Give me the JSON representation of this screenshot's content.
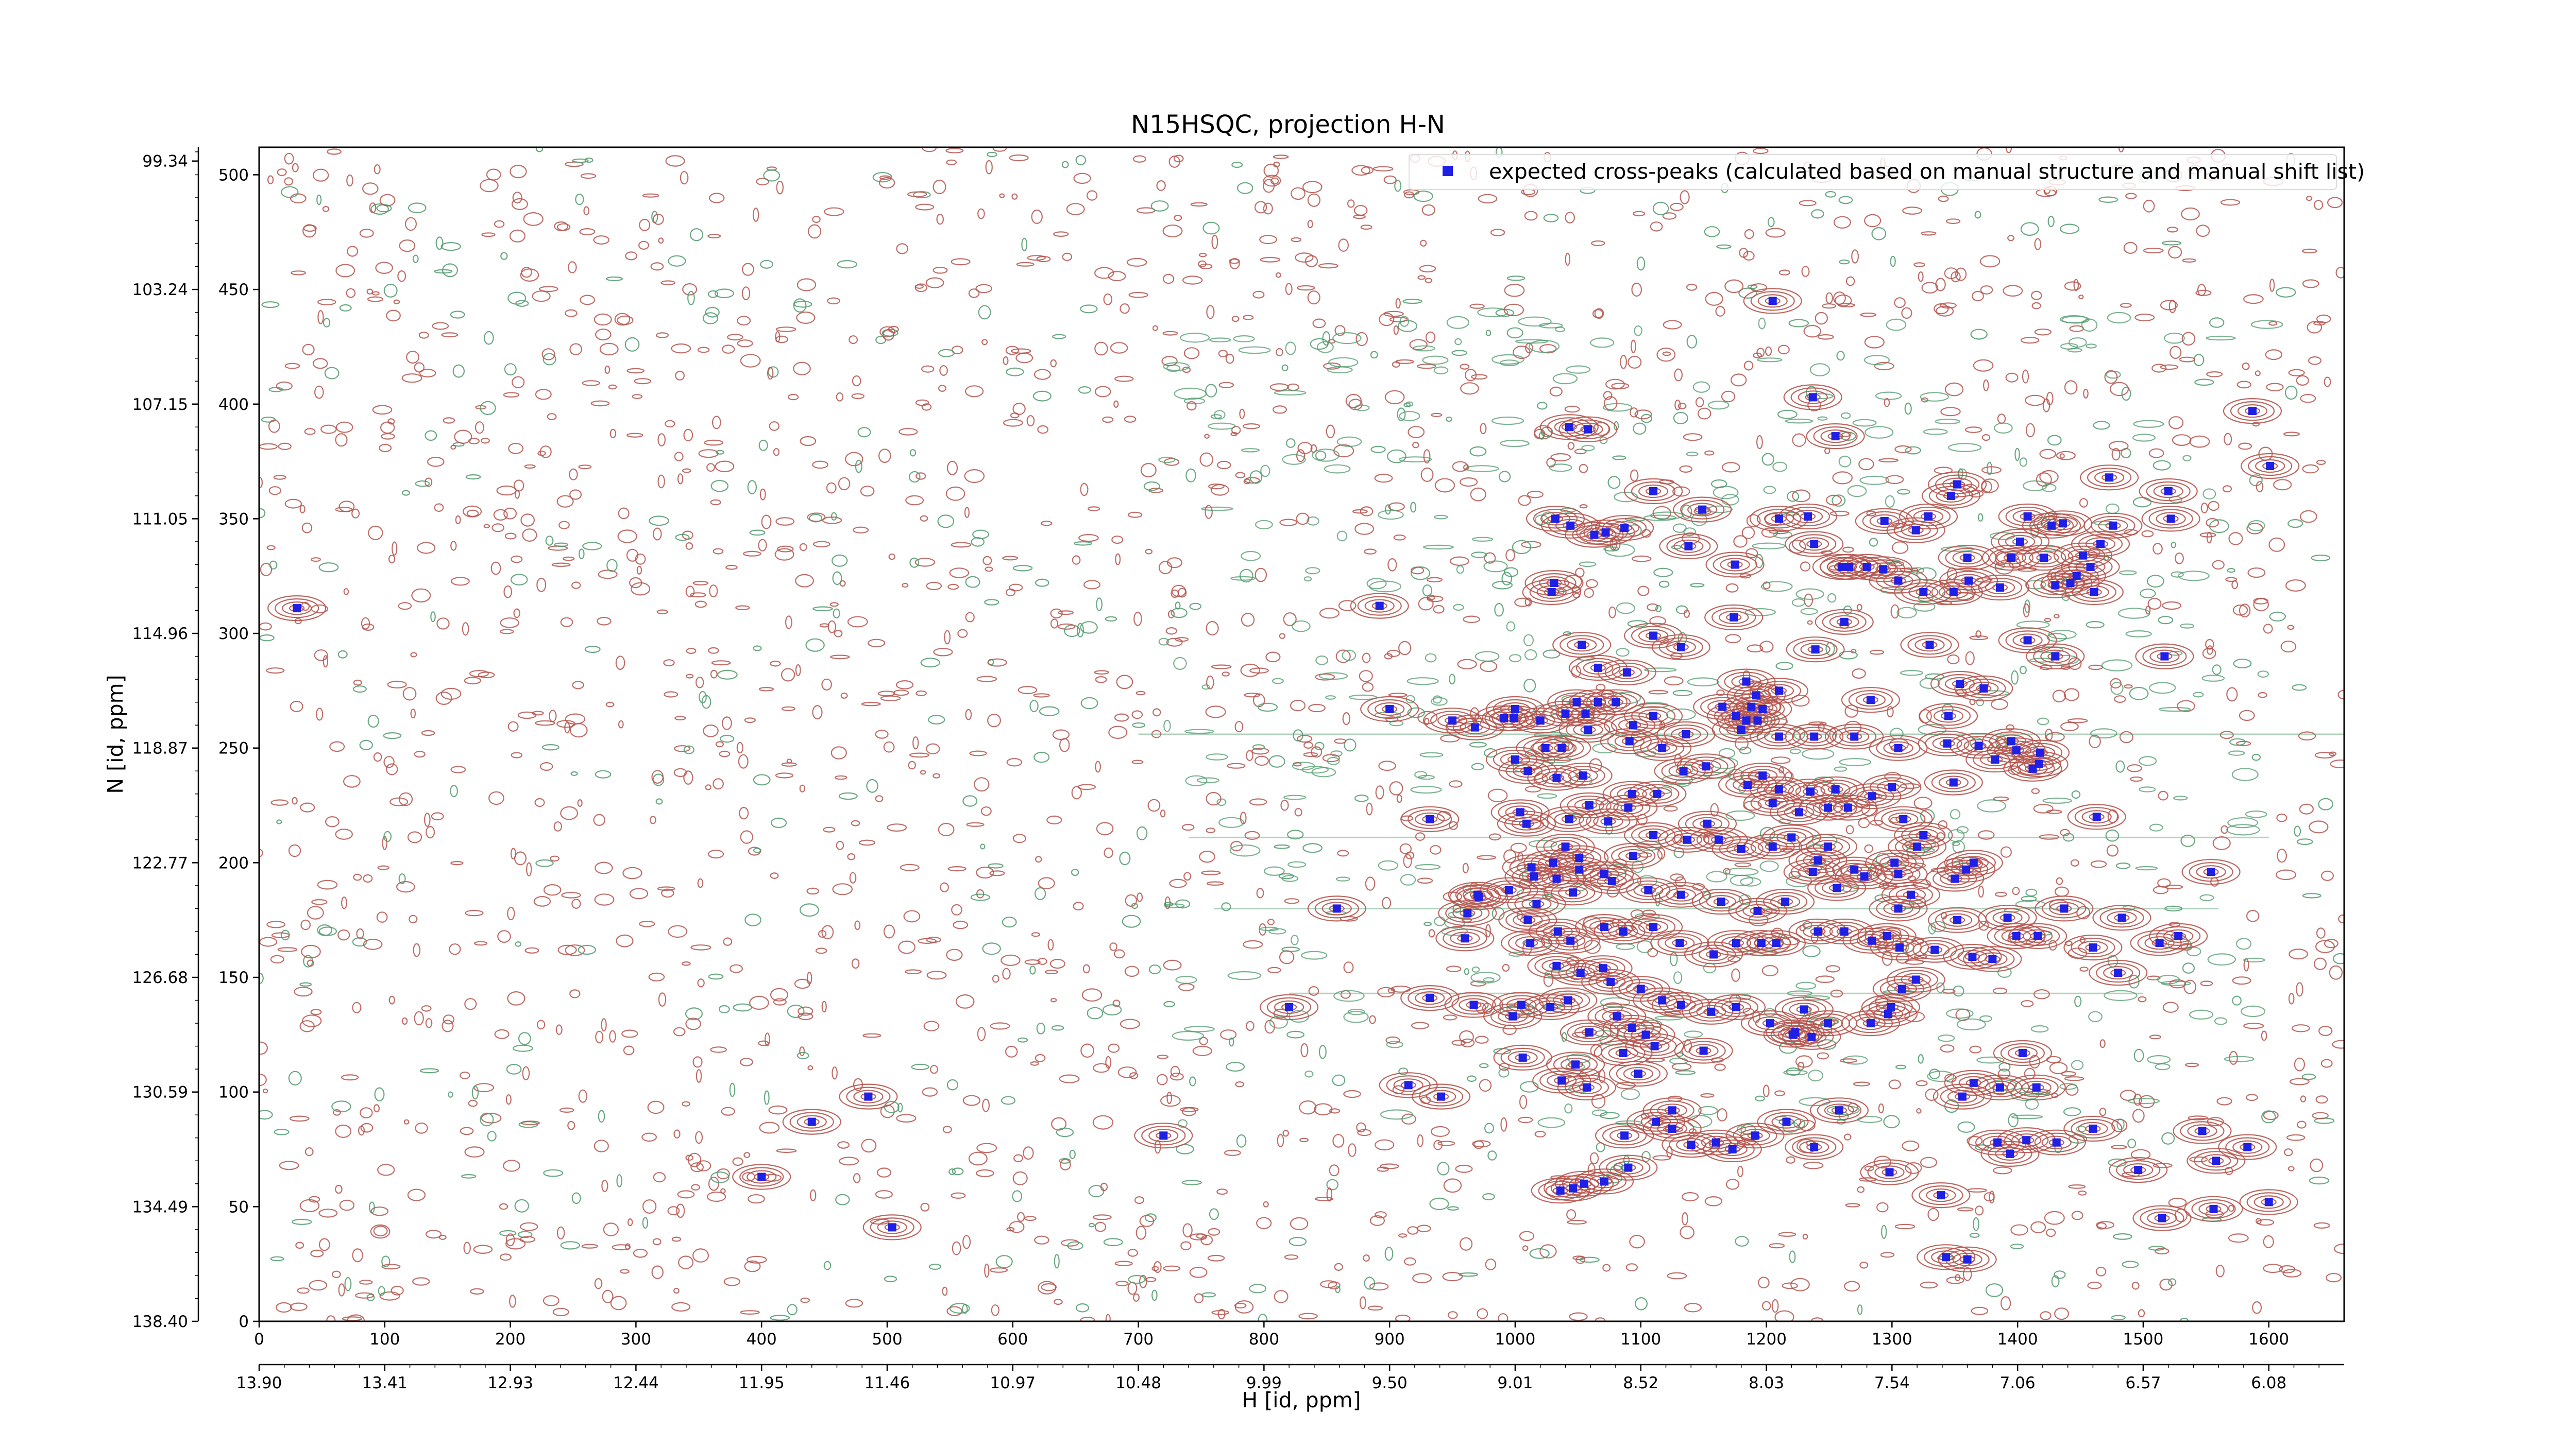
{
  "chart_data": {
    "type": "scatter",
    "title": "N15HSQC, projection H-N",
    "xlabel": "H [id, ppm]",
    "ylabel": "N [id, ppm]",
    "x_index_ticks": [
      "0",
      "100",
      "200",
      "300",
      "400",
      "500",
      "600",
      "700",
      "800",
      "900",
      "1000",
      "1100",
      "1200",
      "1300",
      "1400",
      "1500",
      "1600"
    ],
    "x_ppm_ticks": [
      "13.90",
      "13.41",
      "12.93",
      "12.44",
      "11.95",
      "11.46",
      "10.97",
      "10.48",
      "9.99",
      "9.50",
      "9.01",
      "8.52",
      "8.03",
      "7.54",
      "7.06",
      "6.57",
      "6.08"
    ],
    "y_index_ticks": [
      "0",
      "50",
      "100",
      "150",
      "200",
      "250",
      "300",
      "350",
      "400",
      "450",
      "500"
    ],
    "y_ppm_ticks": [
      "138.40",
      "134.49",
      "130.59",
      "126.68",
      "122.77",
      "118.87",
      "114.96",
      "111.05",
      "107.15",
      "103.24",
      "99.34"
    ],
    "xlim": [
      0,
      1660
    ],
    "ylim": [
      0,
      512
    ],
    "legend": {
      "position": "top-right",
      "label": "expected cross-peaks (calculated based on manual structure and manual shift list)"
    },
    "colors": {
      "positive_contours": "#b5544c",
      "negative_contours": "#4f9a6c",
      "peaks": "#1f1fe6"
    },
    "peaks": [
      [
        30,
        311
      ],
      [
        892,
        312
      ],
      [
        1601,
        373
      ],
      [
        1587,
        397
      ],
      [
        1205,
        445
      ],
      [
        1237,
        403
      ],
      [
        1255,
        386
      ],
      [
        1058,
        389
      ],
      [
        1043,
        390
      ],
      [
        1110,
        362
      ],
      [
        1149,
        354
      ],
      [
        1072,
        344
      ],
      [
        1044,
        347
      ],
      [
        1032,
        350
      ],
      [
        1210,
        350
      ],
      [
        1233,
        351
      ],
      [
        1294,
        349
      ],
      [
        1329,
        351
      ],
      [
        1352,
        365
      ],
      [
        1347,
        360
      ],
      [
        1402,
        340
      ],
      [
        1408,
        351
      ],
      [
        1427,
        347
      ],
      [
        1436,
        348
      ],
      [
        1473,
        368
      ],
      [
        1520,
        362
      ],
      [
        1522,
        350
      ],
      [
        1138,
        338
      ],
      [
        1175,
        330
      ],
      [
        1266,
        329
      ],
      [
        1280,
        329
      ],
      [
        1293,
        328
      ],
      [
        1305,
        323
      ],
      [
        1325,
        318
      ],
      [
        1349,
        318
      ],
      [
        1361,
        323
      ],
      [
        1395,
        333
      ],
      [
        1421,
        333
      ],
      [
        1430,
        321
      ],
      [
        1442,
        322
      ],
      [
        1447,
        325
      ],
      [
        1452,
        334
      ],
      [
        1458,
        329
      ],
      [
        1466,
        339
      ],
      [
        1476,
        347
      ],
      [
        1031,
        322
      ],
      [
        1029,
        318
      ],
      [
        1087,
        346
      ],
      [
        1063,
        343
      ],
      [
        1238,
        339
      ],
      [
        1260,
        329
      ],
      [
        1360,
        333
      ],
      [
        1386,
        320
      ],
      [
        1319,
        345
      ],
      [
        1053,
        295
      ],
      [
        1066,
        285
      ],
      [
        1089,
        283
      ],
      [
        1110,
        299
      ],
      [
        1132,
        294
      ],
      [
        1174,
        307
      ],
      [
        1262,
        305
      ],
      [
        1330,
        295
      ],
      [
        1408,
        297
      ],
      [
        1461,
        318
      ],
      [
        1430,
        290
      ],
      [
        1517,
        290
      ],
      [
        1354,
        278
      ],
      [
        1373,
        276
      ],
      [
        1345,
        264
      ],
      [
        1283,
        271
      ],
      [
        1239,
        293
      ],
      [
        1184,
        279
      ],
      [
        1192,
        273
      ],
      [
        1210,
        275
      ],
      [
        1165,
        268
      ],
      [
        1188,
        268
      ],
      [
        1197,
        267
      ],
      [
        1184,
        262
      ],
      [
        1193,
        262
      ],
      [
        1176,
        264
      ],
      [
        1040,
        265
      ],
      [
        1049,
        270
      ],
      [
        1056,
        265
      ],
      [
        1066,
        270
      ],
      [
        1080,
        270
      ],
      [
        1094,
        260
      ],
      [
        1110,
        264
      ],
      [
        1037,
        250
      ],
      [
        1058,
        258
      ],
      [
        1091,
        253
      ],
      [
        1117,
        250
      ],
      [
        1136,
        256
      ],
      [
        1180,
        258
      ],
      [
        1210,
        255
      ],
      [
        1238,
        255
      ],
      [
        1270,
        255
      ],
      [
        1305,
        250
      ],
      [
        1344,
        252
      ],
      [
        1369,
        251
      ],
      [
        1395,
        253
      ],
      [
        1399,
        249
      ],
      [
        1417,
        243
      ],
      [
        1418,
        248
      ],
      [
        991,
        263
      ],
      [
        1000,
        267
      ],
      [
        999,
        263
      ],
      [
        968,
        259
      ],
      [
        900,
        267
      ],
      [
        950,
        262
      ],
      [
        1020,
        262
      ],
      [
        1024,
        250
      ],
      [
        1000,
        245
      ],
      [
        1010,
        240
      ],
      [
        1033,
        237
      ],
      [
        1054,
        238
      ],
      [
        1093,
        230
      ],
      [
        1113,
        230
      ],
      [
        1134,
        240
      ],
      [
        1152,
        242
      ],
      [
        1185,
        234
      ],
      [
        1197,
        238
      ],
      [
        1210,
        232
      ],
      [
        1235,
        231
      ],
      [
        1249,
        224
      ],
      [
        1255,
        232
      ],
      [
        1284,
        229
      ],
      [
        1300,
        233
      ],
      [
        1349,
        235
      ],
      [
        1382,
        245
      ],
      [
        1412,
        241
      ],
      [
        1463,
        220
      ],
      [
        932,
        219
      ],
      [
        1004,
        222
      ],
      [
        1009,
        217
      ],
      [
        1043,
        219
      ],
      [
        1059,
        225
      ],
      [
        1074,
        218
      ],
      [
        1090,
        224
      ],
      [
        1153,
        217
      ],
      [
        1205,
        226
      ],
      [
        1226,
        222
      ],
      [
        1265,
        224
      ],
      [
        1309,
        219
      ],
      [
        1325,
        212
      ],
      [
        1320,
        207
      ],
      [
        1305,
        195
      ],
      [
        1359,
        197
      ],
      [
        1554,
        196
      ],
      [
        1040,
        207
      ],
      [
        1051,
        202
      ],
      [
        1071,
        195
      ],
      [
        1094,
        203
      ],
      [
        1110,
        212
      ],
      [
        1137,
        210
      ],
      [
        1162,
        210
      ],
      [
        1180,
        206
      ],
      [
        1205,
        207
      ],
      [
        1220,
        211
      ],
      [
        1241,
        201
      ],
      [
        1249,
        207
      ],
      [
        1270,
        197
      ],
      [
        1302,
        200
      ],
      [
        1350,
        193
      ],
      [
        1365,
        200
      ],
      [
        1030,
        200
      ],
      [
        1033,
        193
      ],
      [
        1051,
        197
      ],
      [
        971,
        185
      ],
      [
        995,
        188
      ],
      [
        1013,
        198
      ],
      [
        1015,
        194
      ],
      [
        1017,
        182
      ],
      [
        1046,
        187
      ],
      [
        1077,
        192
      ],
      [
        1106,
        188
      ],
      [
        1132,
        186
      ],
      [
        1164,
        183
      ],
      [
        1193,
        179
      ],
      [
        1215,
        183
      ],
      [
        1237,
        196
      ],
      [
        1256,
        189
      ],
      [
        1278,
        194
      ],
      [
        1305,
        180
      ],
      [
        1315,
        186
      ],
      [
        1352,
        175
      ],
      [
        1392,
        176
      ],
      [
        1437,
        180
      ],
      [
        1483,
        176
      ],
      [
        858,
        180
      ],
      [
        962,
        178
      ],
      [
        970,
        186
      ],
      [
        1010,
        175
      ],
      [
        1034,
        170
      ],
      [
        1044,
        166
      ],
      [
        1071,
        172
      ],
      [
        1086,
        170
      ],
      [
        1110,
        172
      ],
      [
        1131,
        165
      ],
      [
        1158,
        160
      ],
      [
        1176,
        165
      ],
      [
        1196,
        165
      ],
      [
        1208,
        165
      ],
      [
        1241,
        170
      ],
      [
        1262,
        170
      ],
      [
        1284,
        166
      ],
      [
        1306,
        163
      ],
      [
        1334,
        162
      ],
      [
        1364,
        159
      ],
      [
        1380,
        158
      ],
      [
        1399,
        168
      ],
      [
        1416,
        168
      ],
      [
        1460,
        163
      ],
      [
        1480,
        152
      ],
      [
        1513,
        165
      ],
      [
        1528,
        168
      ],
      [
        960,
        167
      ],
      [
        1012,
        165
      ],
      [
        1033,
        155
      ],
      [
        1052,
        152
      ],
      [
        1070,
        154
      ],
      [
        1076,
        148
      ],
      [
        1100,
        145
      ],
      [
        1117,
        140
      ],
      [
        1132,
        138
      ],
      [
        1156,
        135
      ],
      [
        1176,
        137
      ],
      [
        1203,
        130
      ],
      [
        1221,
        125
      ],
      [
        1249,
        130
      ],
      [
        1299,
        137
      ],
      [
        1308,
        145
      ],
      [
        1319,
        149
      ],
      [
        820,
        137
      ],
      [
        932,
        141
      ],
      [
        967,
        138
      ],
      [
        998,
        133
      ],
      [
        1005,
        138
      ],
      [
        1028,
        137
      ],
      [
        1042,
        140
      ],
      [
        1059,
        126
      ],
      [
        1081,
        133
      ],
      [
        1093,
        128
      ],
      [
        1104,
        125
      ],
      [
        1111,
        120
      ],
      [
        1150,
        118
      ],
      [
        1230,
        136
      ],
      [
        1283,
        130
      ],
      [
        1297,
        134
      ],
      [
        1236,
        124
      ],
      [
        1223,
        126
      ],
      [
        1296,
        168
      ],
      [
        915,
        103
      ],
      [
        941,
        98
      ],
      [
        1006,
        115
      ],
      [
        1037,
        105
      ],
      [
        1048,
        112
      ],
      [
        1057,
        102
      ],
      [
        1086,
        117
      ],
      [
        1098,
        108
      ],
      [
        1238,
        76
      ],
      [
        1087,
        81
      ],
      [
        1112,
        87
      ],
      [
        1125,
        84
      ],
      [
        1140,
        77
      ],
      [
        1036,
        57
      ],
      [
        1046,
        58
      ],
      [
        1055,
        60
      ],
      [
        1071,
        61
      ],
      [
        1090,
        67
      ],
      [
        440,
        87
      ],
      [
        485,
        98
      ],
      [
        400,
        63
      ],
      [
        504,
        41
      ],
      [
        720,
        81
      ],
      [
        1125,
        92
      ],
      [
        1160,
        78
      ],
      [
        1173,
        75
      ],
      [
        1191,
        81
      ],
      [
        1216,
        87
      ],
      [
        1258,
        92
      ],
      [
        1298,
        65
      ],
      [
        1339,
        55
      ],
      [
        1343,
        28
      ],
      [
        1360,
        27
      ],
      [
        1356,
        98
      ],
      [
        1365,
        104
      ],
      [
        1386,
        102
      ],
      [
        1404,
        117
      ],
      [
        1415,
        102
      ],
      [
        1384,
        78
      ],
      [
        1394,
        73
      ],
      [
        1407,
        79
      ],
      [
        1431,
        78
      ],
      [
        1460,
        84
      ],
      [
        1547,
        83
      ],
      [
        1583,
        76
      ],
      [
        1558,
        70
      ],
      [
        1496,
        66
      ],
      [
        1515,
        45
      ],
      [
        1556,
        49
      ],
      [
        1600,
        52
      ]
    ]
  }
}
